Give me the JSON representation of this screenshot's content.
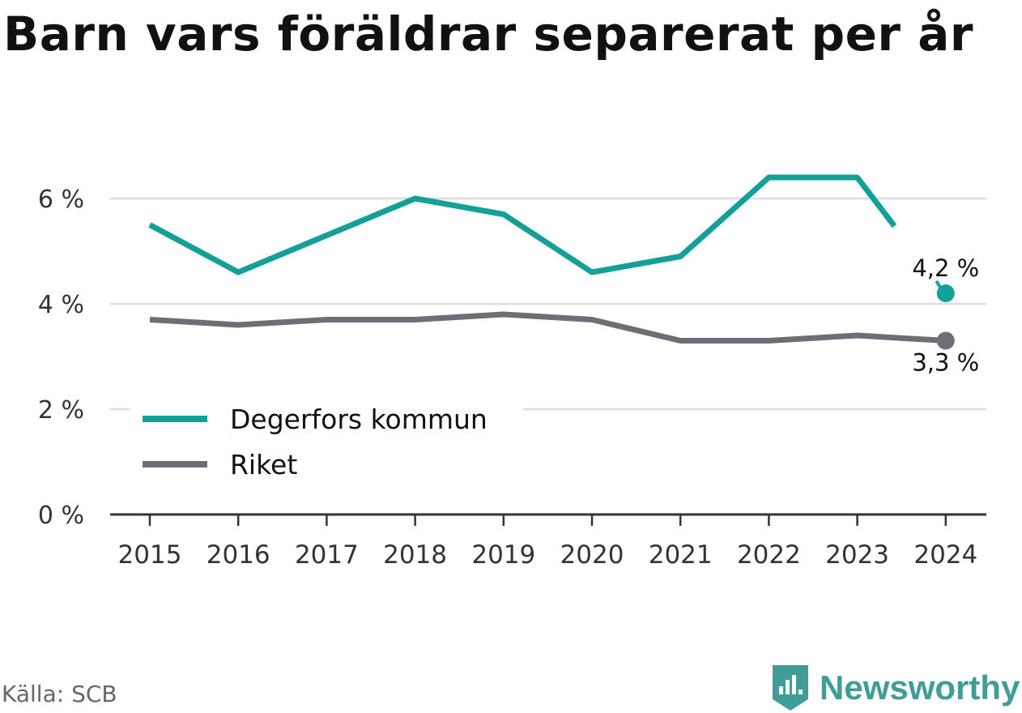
{
  "title": "Barn vars föräldrar separerat per år",
  "source": "Källa: SCB",
  "brand": {
    "name": "Newsworthy",
    "icon": "newsworthy-logo-icon"
  },
  "colors": {
    "degerfors": "#13a098",
    "riket": "#6f6e76",
    "grid": "#dddddd",
    "axis": "#333333"
  },
  "chart_data": {
    "type": "line",
    "x": [
      "2015",
      "2016",
      "2017",
      "2018",
      "2019",
      "2020",
      "2021",
      "2022",
      "2023",
      "2024"
    ],
    "series": [
      {
        "name": "Degerfors kommun",
        "values": [
          5.5,
          4.6,
          5.3,
          6.0,
          5.7,
          4.6,
          4.9,
          6.4,
          6.4,
          4.2
        ],
        "color": "#13a098"
      },
      {
        "name": "Riket",
        "values": [
          3.7,
          3.6,
          3.7,
          3.7,
          3.8,
          3.7,
          3.3,
          3.3,
          3.4,
          3.3
        ],
        "color": "#6f6e76"
      }
    ],
    "end_labels": [
      "4,2 %",
      "3,3 %"
    ],
    "yticks": [
      0,
      2,
      4,
      6
    ],
    "ytick_labels": [
      "0 %",
      "2 %",
      "4 %",
      "6 %"
    ],
    "ylim": [
      0,
      6.8
    ],
    "grid": true,
    "legend": "bottom-left"
  }
}
